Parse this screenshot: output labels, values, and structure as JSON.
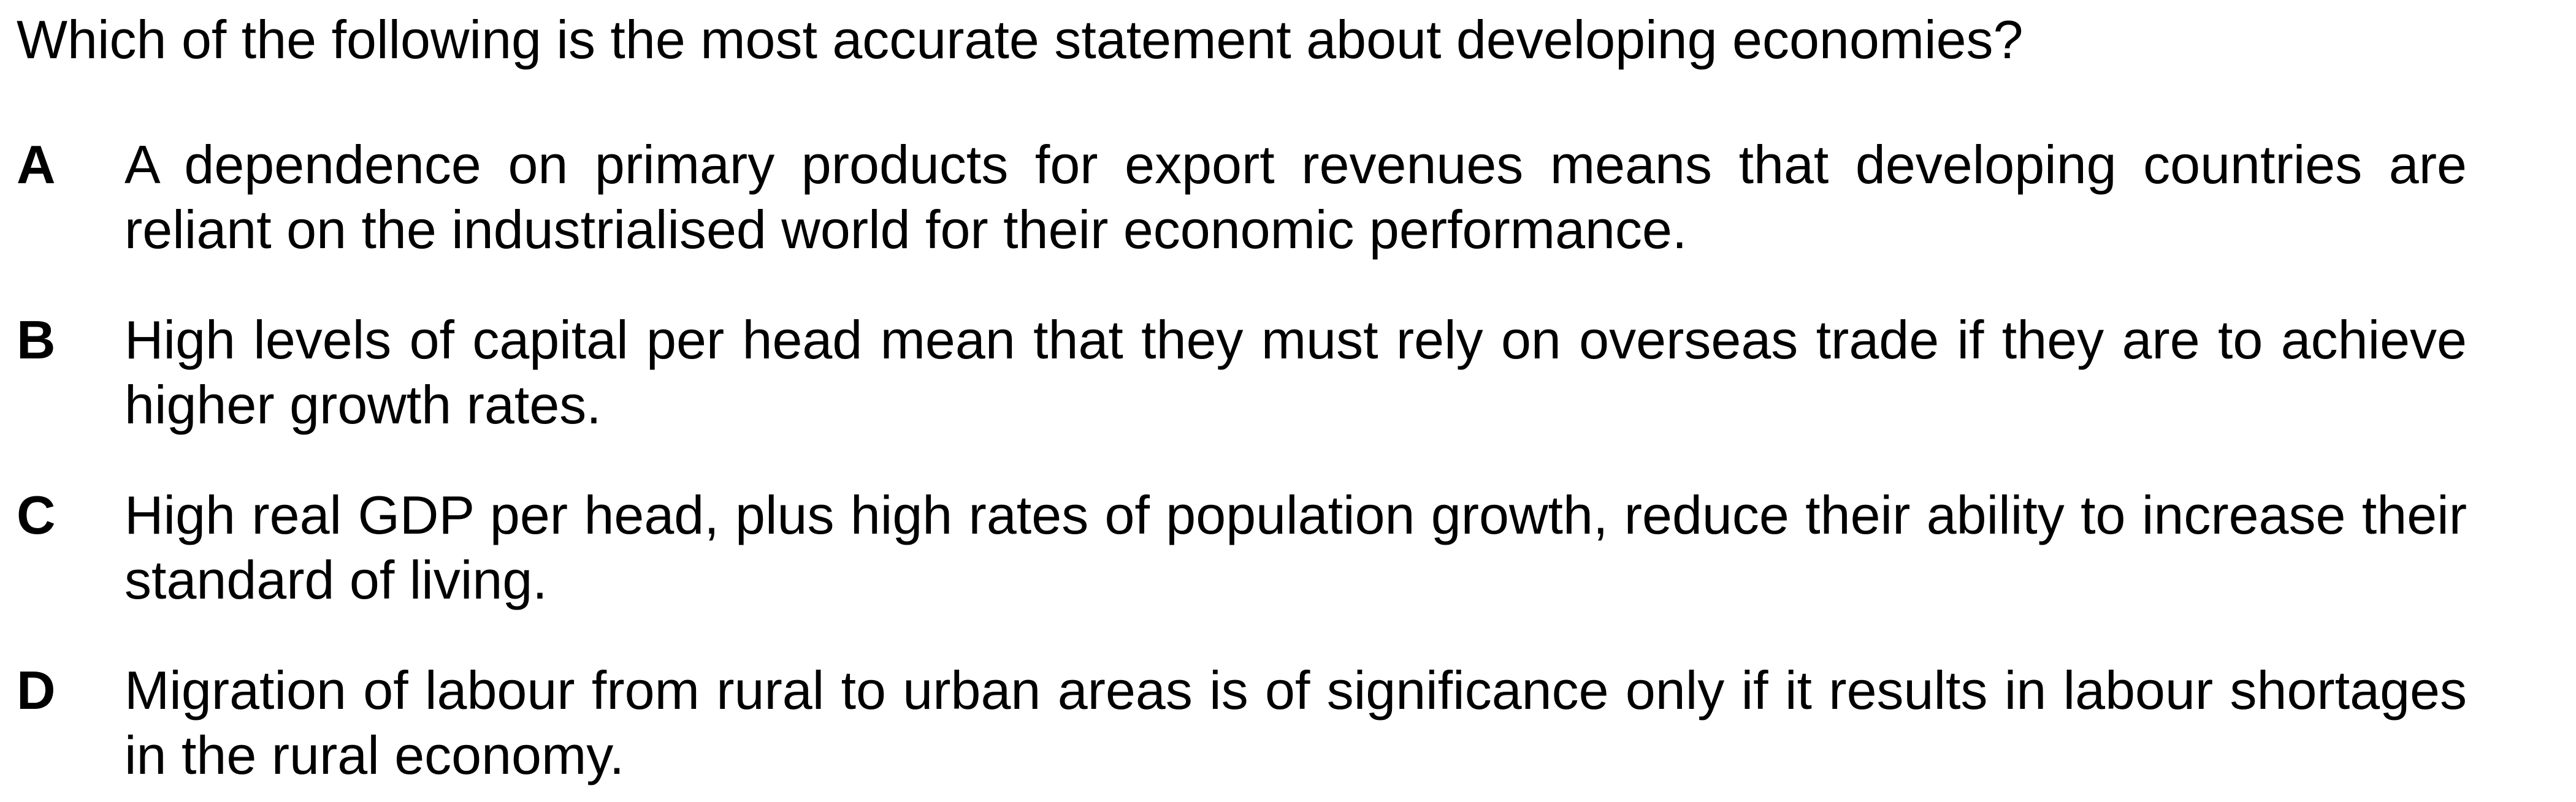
{
  "question": {
    "text": "Which of the following is the most accurate statement about developing economies?"
  },
  "options": [
    {
      "letter": "A",
      "text": "A dependence on primary products for export revenues means that developing countries are reliant on the industrialised world for their economic performance."
    },
    {
      "letter": "B",
      "text": "High levels of capital per head mean that they must rely on overseas trade if they are to achieve higher growth rates."
    },
    {
      "letter": "C",
      "text": "High real GDP per head, plus high rates of population growth, reduce their ability to increase their standard of living."
    },
    {
      "letter": "D",
      "text": "Migration of labour from rural to urban areas is of significance only if it results in labour shortages in the rural economy."
    }
  ]
}
